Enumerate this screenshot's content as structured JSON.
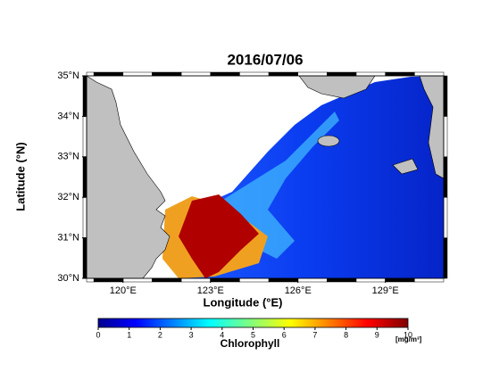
{
  "title": "2016/07/06",
  "x_axis": {
    "label": "Longitude (°E)",
    "range": [
      118.75,
      131
    ],
    "ticks": [
      {
        "value": 120,
        "label": "120°E"
      },
      {
        "value": 123,
        "label": "123°E"
      },
      {
        "value": 126,
        "label": "126°E"
      },
      {
        "value": 129,
        "label": "129°E"
      }
    ]
  },
  "y_axis": {
    "label": "Latitude (°N)",
    "range": [
      30,
      35
    ],
    "ticks": [
      {
        "value": 30,
        "label": "30°N"
      },
      {
        "value": 31,
        "label": "31°N"
      },
      {
        "value": 32,
        "label": "32°N"
      },
      {
        "value": 33,
        "label": "33°N"
      },
      {
        "value": 34,
        "label": "34°N"
      },
      {
        "value": 35,
        "label": "35°N"
      }
    ]
  },
  "colorbar": {
    "label": "Chlorophyll",
    "unit": "[mg/m³]",
    "range": [
      0,
      10
    ],
    "ticks": [
      0,
      1,
      2,
      3,
      4,
      5,
      6,
      7,
      8,
      9,
      10
    ]
  }
}
